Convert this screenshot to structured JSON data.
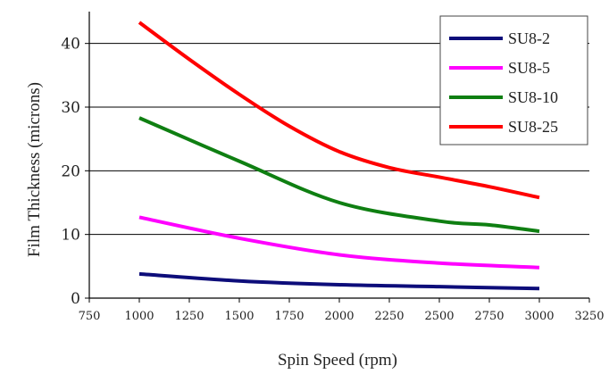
{
  "chart_data": {
    "type": "line",
    "xlabel": "Spin Speed (rpm)",
    "ylabel": "Film Thickness (microns)",
    "xlim": [
      750,
      3250
    ],
    "ylim": [
      0,
      45
    ],
    "xticks": [
      "750",
      "1000",
      "1250",
      "1500",
      "1750",
      "2000",
      "2250",
      "2500",
      "2750",
      "3000",
      "3250"
    ],
    "yticks": [
      "0",
      "10",
      "20",
      "30",
      "40"
    ],
    "grid": "horizontal",
    "legend": "top-right",
    "series": [
      {
        "name": "SU8-2",
        "color": "#0d0d7a",
        "x": [
          1000,
          1500,
          2000,
          2500,
          3000
        ],
        "y": [
          3.8,
          2.7,
          2.1,
          1.8,
          1.5
        ]
      },
      {
        "name": "SU8-5",
        "color": "#ff00ff",
        "x": [
          1000,
          1500,
          2000,
          2500,
          3000
        ],
        "y": [
          12.7,
          9.4,
          6.8,
          5.5,
          4.8
        ]
      },
      {
        "name": "SU8-10",
        "color": "#0f7f12",
        "x": [
          1000,
          1500,
          2000,
          2500,
          2750,
          3000
        ],
        "y": [
          28.3,
          21.5,
          15.0,
          12.1,
          11.5,
          10.5
        ]
      },
      {
        "name": "SU8-25",
        "color": "#ff0000",
        "x": [
          1000,
          1250,
          1500,
          1750,
          2000,
          2250,
          2500,
          2750,
          3000
        ],
        "y": [
          43.3,
          37.5,
          32.0,
          27.0,
          23.0,
          20.5,
          19.0,
          17.5,
          15.8
        ]
      }
    ]
  }
}
